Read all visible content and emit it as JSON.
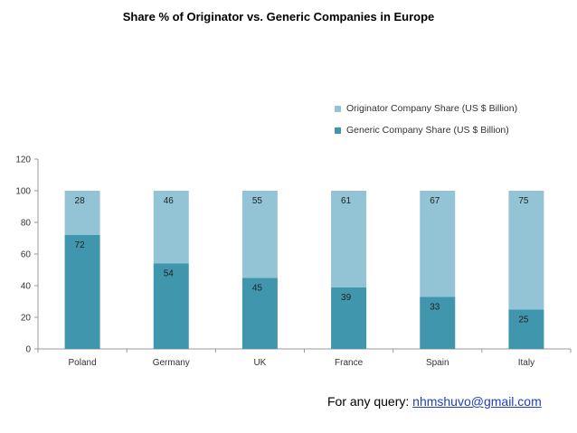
{
  "footer": {
    "prefix": "For any query: ",
    "email": "nhmshuvo@gmail.com"
  },
  "colors": {
    "originator": "#93c4d6",
    "generic": "#3f96ad",
    "axis": "#999999",
    "text": "#333333"
  },
  "chart_data": {
    "type": "bar",
    "stacked": true,
    "title": "Share % of Originator vs. Generic Companies in Europe",
    "categories": [
      "Poland",
      "Germany",
      "UK",
      "France",
      "Spain",
      "Italy"
    ],
    "series": [
      {
        "name": "Generic Company Share (US $ Billion)",
        "values": [
          72,
          54,
          45,
          39,
          33,
          25
        ]
      },
      {
        "name": "Originator Company Share (US $ Billion)",
        "values": [
          28,
          46,
          55,
          61,
          67,
          75
        ]
      }
    ],
    "legend": [
      "Originator Company Share (US $ Billion)",
      "Generic Company Share (US $ Billion)"
    ],
    "yticks": [
      0,
      20,
      40,
      60,
      80,
      100,
      120
    ],
    "ylim": [
      0,
      120
    ],
    "xlabel": "",
    "ylabel": "",
    "grid": false,
    "legend_position": "top-right"
  }
}
